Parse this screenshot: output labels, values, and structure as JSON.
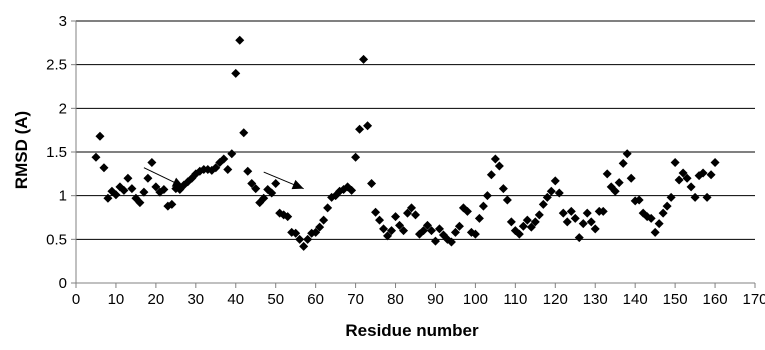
{
  "chart_data": {
    "type": "scatter",
    "title": "",
    "xlabel": "Residue number",
    "ylabel": "RMSD (A)",
    "xlim": [
      0,
      170
    ],
    "ylim": [
      0,
      3
    ],
    "x_ticks": [
      0,
      10,
      20,
      30,
      40,
      50,
      60,
      70,
      80,
      90,
      100,
      110,
      120,
      130,
      140,
      150,
      160,
      170
    ],
    "y_ticks": [
      0,
      0.5,
      1,
      1.5,
      2,
      2.5,
      3
    ],
    "grid": "horizontal",
    "marker": "diamond",
    "colors": {
      "marker": "#000000",
      "grid": "#000000",
      "axis": "#808080"
    },
    "annotations": [
      {
        "type": "arrow",
        "from": [
          17,
          1.32
        ],
        "to": [
          27,
          1.1
        ]
      },
      {
        "type": "arrow",
        "from": [
          47,
          1.27
        ],
        "to": [
          57,
          1.08
        ]
      }
    ],
    "series": [
      {
        "x": [
          5,
          6,
          7,
          8,
          9,
          10,
          11,
          12,
          13,
          14,
          15,
          16,
          17,
          18,
          19,
          20,
          21,
          22,
          23,
          24,
          25,
          26,
          27,
          28,
          29,
          30,
          31,
          32,
          33,
          34,
          35,
          36,
          37,
          38,
          39,
          40,
          41,
          42,
          43,
          44,
          45,
          46,
          47,
          48,
          49,
          50,
          51,
          52,
          53,
          54,
          55,
          56,
          57,
          58,
          59,
          60,
          61,
          62,
          63,
          64,
          65,
          66,
          67,
          68,
          69,
          70,
          71,
          72,
          73,
          74,
          75,
          76,
          77,
          78,
          79,
          80,
          81,
          82,
          83,
          84,
          85,
          86,
          87,
          88,
          89,
          90,
          91,
          92,
          93,
          94,
          95,
          96,
          97,
          98,
          99,
          100,
          101,
          102,
          103,
          104,
          105,
          106,
          107,
          108,
          109,
          110,
          111,
          112,
          113,
          114,
          115,
          116,
          117,
          118,
          119,
          120,
          121,
          122,
          123,
          124,
          125,
          126,
          127,
          128,
          129,
          130,
          131,
          132,
          133,
          134,
          135,
          136,
          137,
          138,
          139,
          140,
          141,
          142,
          143,
          144,
          145,
          146,
          147,
          148,
          149,
          150,
          151,
          152,
          153,
          154,
          155,
          156,
          157,
          158,
          159,
          160
        ],
        "y": [
          1.44,
          1.68,
          1.32,
          0.97,
          1.05,
          1.01,
          1.1,
          1.06,
          1.2,
          1.08,
          0.97,
          0.92,
          1.04,
          1.2,
          1.38,
          1.1,
          1.04,
          1.07,
          0.88,
          0.9,
          1.08,
          1.07,
          1.12,
          1.16,
          1.2,
          1.25,
          1.28,
          1.3,
          1.3,
          1.29,
          1.32,
          1.38,
          1.42,
          1.3,
          1.48,
          2.4,
          2.78,
          1.72,
          1.28,
          1.14,
          1.08,
          0.92,
          0.97,
          1.07,
          1.03,
          1.14,
          0.8,
          0.78,
          0.76,
          0.58,
          0.57,
          0.5,
          0.42,
          0.5,
          0.57,
          0.58,
          0.64,
          0.72,
          0.86,
          0.98,
          1.0,
          1.05,
          1.07,
          1.1,
          1.06,
          1.44,
          1.76,
          2.56,
          1.8,
          1.14,
          0.81,
          0.72,
          0.62,
          0.54,
          0.6,
          0.76,
          0.66,
          0.6,
          0.8,
          0.86,
          0.78,
          0.56,
          0.6,
          0.66,
          0.6,
          0.48,
          0.62,
          0.55,
          0.5,
          0.47,
          0.58,
          0.65,
          0.86,
          0.82,
          0.58,
          0.56,
          0.74,
          0.88,
          1.0,
          1.24,
          1.42,
          1.34,
          1.08,
          0.95,
          0.7,
          0.6,
          0.56,
          0.65,
          0.72,
          0.64,
          0.7,
          0.78,
          0.9,
          0.98,
          1.05,
          1.17,
          1.03,
          0.8,
          0.7,
          0.82,
          0.74,
          0.52,
          0.68,
          0.8,
          0.7,
          0.62,
          0.82,
          0.82,
          1.25,
          1.1,
          1.05,
          1.15,
          1.37,
          1.48,
          1.2,
          0.94,
          0.95,
          0.8,
          0.76,
          0.74,
          0.58,
          0.68,
          0.8,
          0.88,
          0.98,
          1.38,
          1.18,
          1.26,
          1.2,
          1.1,
          0.98,
          1.23,
          1.26,
          0.98,
          1.24,
          1.38
        ]
      }
    ]
  }
}
